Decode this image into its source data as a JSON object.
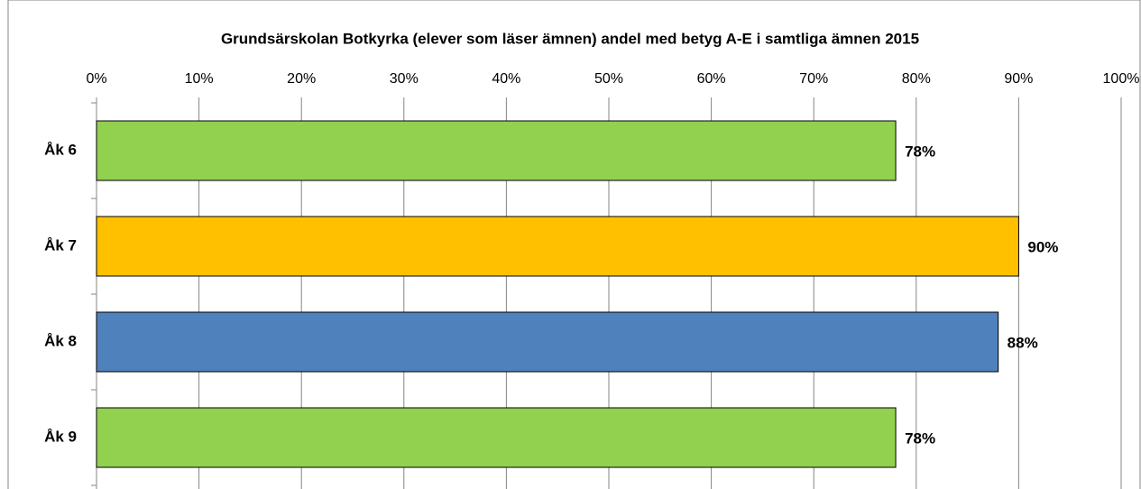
{
  "chart_data": {
    "type": "hbar",
    "title": "Grundsärskolan Botkyrka (elever som läser ämnen) andel med betyg A-E  i samtliga ämnen 2015",
    "categories": [
      "Åk 6",
      "Åk 7",
      "Åk 8",
      "Åk 9"
    ],
    "values": [
      78,
      90,
      88,
      78
    ],
    "value_labels": [
      "78%",
      "90%",
      "88%",
      "78%"
    ],
    "colors": [
      "#92d050",
      "#ffc000",
      "#4f81bd",
      "#92d050"
    ],
    "xlim": [
      0,
      100
    ],
    "xticks": [
      {
        "value": 0,
        "label": "0%"
      },
      {
        "value": 10,
        "label": "10%"
      },
      {
        "value": 20,
        "label": "20%"
      },
      {
        "value": 30,
        "label": "30%"
      },
      {
        "value": 40,
        "label": "40%"
      },
      {
        "value": 50,
        "label": "50%"
      },
      {
        "value": 60,
        "label": "60%"
      },
      {
        "value": 70,
        "label": "70%"
      },
      {
        "value": 80,
        "label": "80%"
      },
      {
        "value": 90,
        "label": "90%"
      },
      {
        "value": 100,
        "label": "100%"
      }
    ],
    "grid": true
  }
}
